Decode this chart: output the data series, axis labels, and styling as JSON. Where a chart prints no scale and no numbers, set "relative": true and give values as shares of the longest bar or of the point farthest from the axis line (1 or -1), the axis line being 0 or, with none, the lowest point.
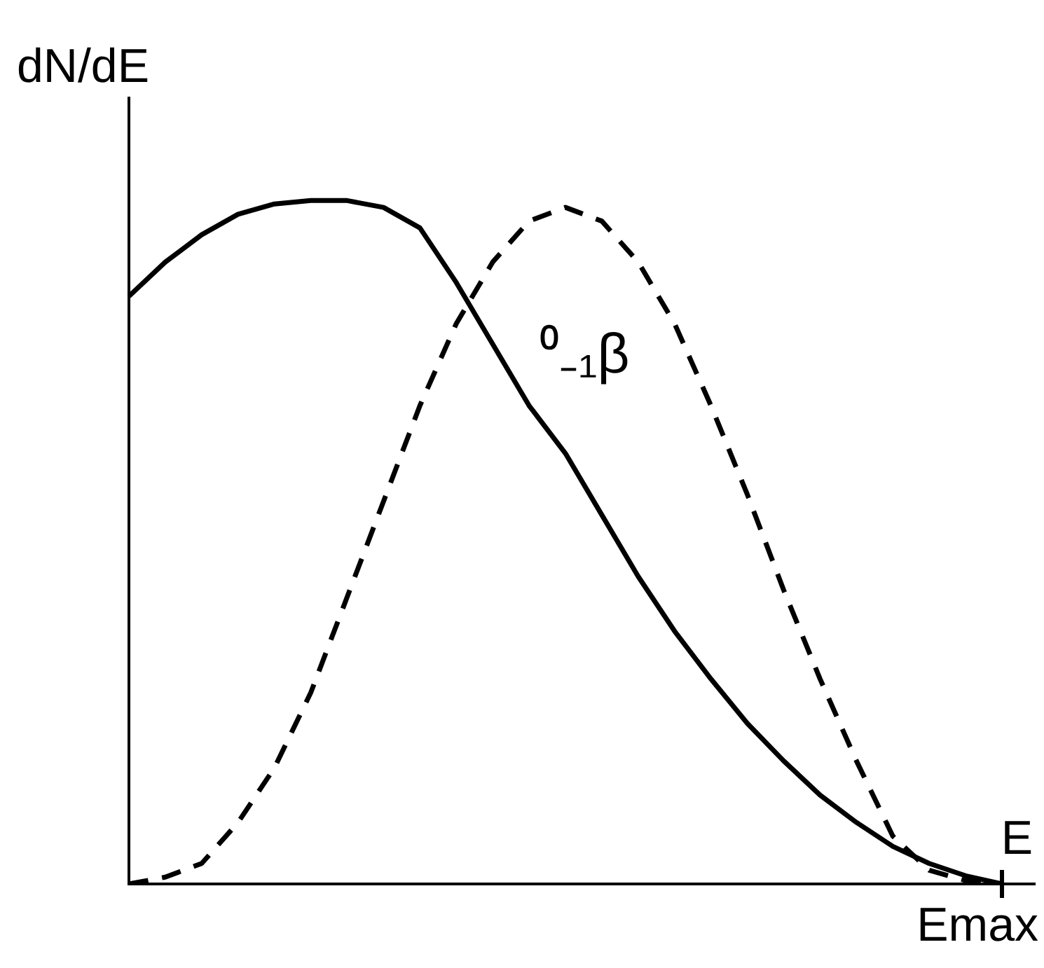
{
  "chart_data": {
    "type": "line",
    "relative": true,
    "xlabel": "E",
    "ylabel": "dN/dE",
    "grid": false,
    "legend": false,
    "marker": "none",
    "annotations": [
      "⁰₋₁β",
      "Emax"
    ],
    "categories": [
      null,
      null,
      null,
      null,
      null,
      null,
      null,
      null,
      null,
      null,
      null,
      null,
      null,
      null,
      null,
      null,
      null,
      null,
      null,
      null,
      null,
      null,
      null,
      null,
      null
    ],
    "series": [
      {
        "color": "#000000",
        "line_style": "solid",
        "values": [
          0.86,
          0.91,
          0.95,
          0.98,
          0.995,
          1,
          1,
          0.99,
          0.96,
          0.88,
          0.79,
          0.7,
          0.63,
          0.54,
          0.45,
          0.37,
          0.3,
          0.235,
          0.18,
          0.13,
          0.09,
          0.055,
          0.03,
          0.012,
          0
        ]
      },
      {
        "color": "#000000",
        "line_style": "dashed",
        "values": [
          0,
          0.01,
          0.03,
          0.09,
          0.17,
          0.28,
          0.42,
          0.56,
          0.7,
          0.82,
          0.91,
          0.97,
          0.99,
          0.97,
          0.91,
          0.82,
          0.7,
          0.57,
          0.43,
          0.3,
          0.18,
          0.07,
          0.02,
          0.005,
          0
        ]
      }
    ]
  }
}
